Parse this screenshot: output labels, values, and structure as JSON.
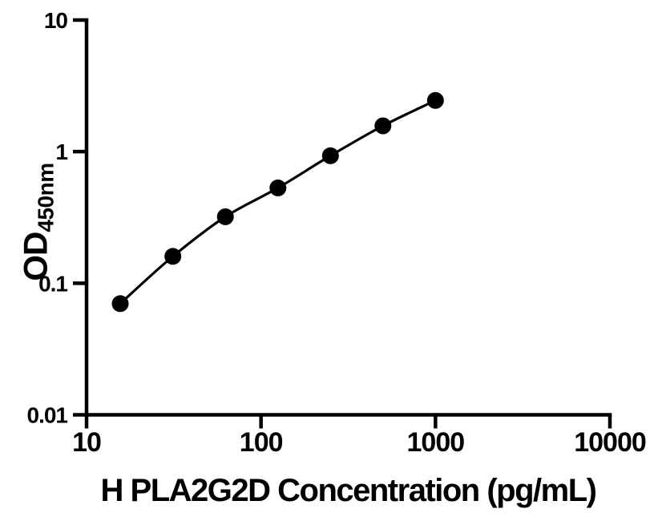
{
  "figure": {
    "background": "#ffffff"
  },
  "chart_data": {
    "type": "scatter",
    "title": "",
    "xlabel": "H PLA2G2D Concentration (pg/mL)",
    "ylabel_main": "OD",
    "ylabel_sub": "450nm",
    "x_scale": "log10",
    "y_scale": "log10",
    "xlim": [
      10,
      10000
    ],
    "ylim": [
      0.01,
      10
    ],
    "x": [
      15.6,
      31.25,
      62.5,
      125,
      250,
      500,
      1000
    ],
    "y": [
      0.07,
      0.16,
      0.32,
      0.53,
      0.93,
      1.57,
      2.45
    ],
    "x_ticks": [
      {
        "value": 10,
        "label": "10"
      },
      {
        "value": 100,
        "label": "100"
      },
      {
        "value": 1000,
        "label": "1000"
      },
      {
        "value": 10000,
        "label": "10000"
      }
    ],
    "y_ticks": [
      {
        "value": 10,
        "label": "10"
      },
      {
        "value": 1,
        "label": "1"
      },
      {
        "value": 0.1,
        "label": "0.1"
      },
      {
        "value": 0.01,
        "label": "0.01"
      }
    ],
    "grid": false,
    "legend": false,
    "marker": "filled-circle",
    "marker_color": "#000000",
    "line_color": "#000000",
    "axis_color": "#000000"
  }
}
